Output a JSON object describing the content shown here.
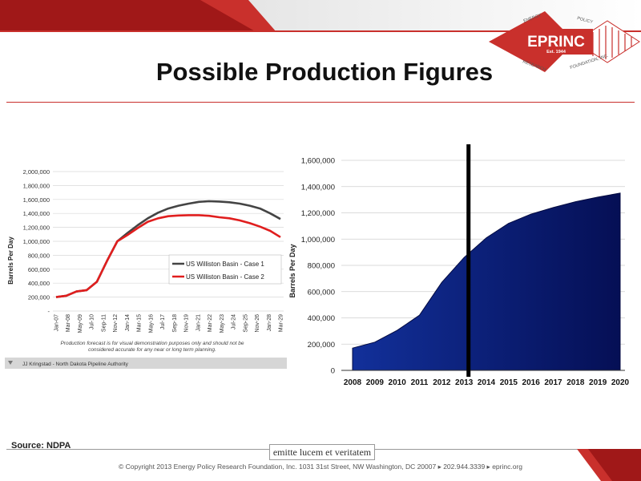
{
  "title": "Possible Production Figures",
  "logo": {
    "name": "EPRINC",
    "est": "Est. 1944",
    "tl": "ENERGY",
    "tr": "POLICY",
    "bl": "RESEARCH",
    "br": "FOUNDATION, INC."
  },
  "colors": {
    "accent": "#c9302c",
    "area_fill": "#0a1a78",
    "case1": "#444444",
    "case2": "#e01e1e"
  },
  "source": "Source: NDPA",
  "motto": "emitte lucem et veritatem",
  "copyright": "© Copyright 2013 Energy Policy Research Foundation, Inc. 1031 31st Street, NW Washington, DC 20007 ▸ 202.944.3339 ▸ eprinc.org",
  "chart_data": [
    {
      "type": "line",
      "ylabel": "Barrels Per Day",
      "ylim": [
        0,
        2000000
      ],
      "yticks": [
        "2,000,000",
        "1,800,000",
        "1,600,000",
        "1,400,000",
        "1,200,000",
        "1,000,000",
        "800,000",
        "600,000",
        "400,000",
        "200,000",
        "-"
      ],
      "ytick_values": [
        2000000,
        1800000,
        1600000,
        1400000,
        1200000,
        1000000,
        800000,
        600000,
        400000,
        200000,
        0
      ],
      "xticks": [
        "Jan-07",
        "Mar-08",
        "May-09",
        "Jul-10",
        "Sep-11",
        "Nov-12",
        "Jan-14",
        "Mar-15",
        "May-16",
        "Jul-17",
        "Sep-18",
        "Nov-19",
        "Jan-21",
        "Mar-22",
        "May-23",
        "Jul-24",
        "Sep-25",
        "Nov-26",
        "Jan-28",
        "Mar-29"
      ],
      "legend_placement": "bottom-right",
      "grid": true,
      "note": "Production forecast is for visual demonstration purposes only and should not be considered accurate for any near or long term planning.",
      "credit": "JJ Kringstad - North Dakota Pipeline Authority",
      "series": [
        {
          "name": "US Williston Basin - Case 1",
          "values": [
            200000,
            220000,
            280000,
            300000,
            420000,
            720000,
            1000000,
            1120000,
            1230000,
            1330000,
            1410000,
            1470000,
            1510000,
            1540000,
            1565000,
            1575000,
            1570000,
            1560000,
            1540000,
            1510000,
            1470000,
            1400000,
            1320000
          ]
        },
        {
          "name": "US Williston Basin - Case 2",
          "values": [
            200000,
            220000,
            280000,
            300000,
            420000,
            720000,
            1000000,
            1090000,
            1190000,
            1280000,
            1330000,
            1360000,
            1370000,
            1375000,
            1375000,
            1365000,
            1345000,
            1330000,
            1300000,
            1260000,
            1210000,
            1150000,
            1060000
          ]
        }
      ]
    },
    {
      "type": "area",
      "ylabel": "Barrels Per Day",
      "ylim": [
        0,
        1600000
      ],
      "yticks": [
        "1,600,000",
        "1,400,000",
        "1,200,000",
        "1,000,000",
        "800,000",
        "600,000",
        "400,000",
        "200,000",
        "0"
      ],
      "ytick_values": [
        1600000,
        1400000,
        1200000,
        1000000,
        800000,
        600000,
        400000,
        200000,
        0
      ],
      "categories": [
        "2008",
        "2009",
        "2010",
        "2011",
        "2012",
        "2013",
        "2014",
        "2015",
        "2016",
        "2017",
        "2018",
        "2019",
        "2020"
      ],
      "values": [
        170000,
        215000,
        305000,
        420000,
        670000,
        860000,
        1010000,
        1120000,
        1190000,
        1240000,
        1285000,
        1320000,
        1350000
      ],
      "marker_line_year": 2013.2,
      "grid": true
    }
  ]
}
